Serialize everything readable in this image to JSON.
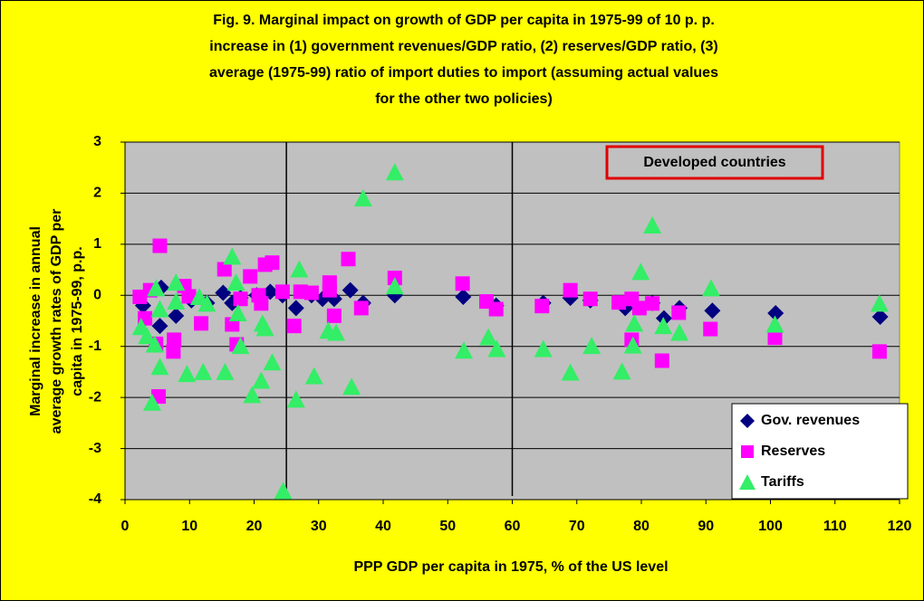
{
  "chart_data": {
    "type": "scatter",
    "title": [
      "Fig. 9. Marginal impact on growth of GDP per capita in 1975-99 of  10 p. p.",
      "increase in (1) government revenues/GDP ratio, (2) reserves/GDP ratio, (3)",
      "average (1975-99) ratio of import duties to import (assuming actual values",
      "for the other two policies)"
    ],
    "y_label": [
      "Marginal increase in annual",
      "average growth rates of GDP per",
      "capita in 1975-99, p.p."
    ],
    "x_label": "PPP GDP per capita in 1975, % of the US level",
    "annotation": "Developed countries",
    "xlim": [
      0,
      120
    ],
    "ylim": [
      -4,
      3
    ],
    "xticks": [
      0,
      10,
      20,
      30,
      40,
      50,
      60,
      70,
      80,
      90,
      100,
      110,
      120
    ],
    "yticks": [
      -4,
      -3,
      -2,
      -1,
      0,
      1,
      2,
      3
    ],
    "vlines": [
      25,
      60
    ],
    "grid": true,
    "legend": "lower right",
    "series": [
      {
        "name": "Gov. revenues",
        "color": "#000080",
        "marker": "diamond",
        "x": [
          2.8,
          5.4,
          5.6,
          7.9,
          10.3,
          12.7,
          15.2,
          16.6,
          17.9,
          20.4,
          22.5,
          24.4,
          26.5,
          28.9,
          30.6,
          32.4,
          34.9,
          36.9,
          41.8,
          52.4,
          57.5,
          64.8,
          69.0,
          72.1,
          77.5,
          81.7,
          83.5,
          85.9,
          91.0,
          100.8,
          117.0
        ],
        "values": [
          -0.2,
          -0.6,
          0.15,
          -0.4,
          -0.1,
          -0.15,
          0.05,
          -0.15,
          -0.05,
          0,
          0.07,
          0,
          -0.25,
          0,
          -0.07,
          -0.07,
          0.1,
          -0.15,
          0,
          -0.03,
          -0.2,
          -0.15,
          -0.05,
          -0.1,
          -0.25,
          -0.15,
          -0.45,
          -0.25,
          -0.3,
          -0.35,
          -0.42
        ]
      },
      {
        "name": "Reserves",
        "color": "#ff00ff",
        "marker": "square",
        "x": [
          2.3,
          3.1,
          3.9,
          4.8,
          5.4,
          5.2,
          7.6,
          7.5,
          9.2,
          9.9,
          11.8,
          15.4,
          16.6,
          17.3,
          17.9,
          19.4,
          20.7,
          21.1,
          21.7,
          22.8,
          24.4,
          26.2,
          27.2,
          28.9,
          31.7,
          31.7,
          32.4,
          34.6,
          36.6,
          41.8,
          52.3,
          56.0,
          57.5,
          64.6,
          69.0,
          72.1,
          76.5,
          78.5,
          78.5,
          79.7,
          81.7,
          83.2,
          85.8,
          90.7,
          100.7,
          116.9
        ],
        "values": [
          -0.03,
          -0.45,
          0.1,
          -0.95,
          0.97,
          -1.98,
          -0.87,
          -1.1,
          0.18,
          -0.02,
          -0.55,
          0.51,
          -0.57,
          -0.96,
          -0.07,
          0.37,
          0,
          -0.16,
          0.6,
          0.64,
          0.07,
          -0.6,
          0.07,
          0.05,
          0.1,
          0.25,
          -0.4,
          0.71,
          -0.25,
          0.34,
          0.23,
          -0.12,
          -0.27,
          -0.21,
          0.1,
          -0.07,
          -0.14,
          -0.07,
          -0.87,
          -0.25,
          -0.16,
          -1.28,
          -0.34,
          -0.66,
          -0.83,
          -1.1
        ]
      },
      {
        "name": "Tariffs",
        "color": "#33ee66",
        "marker": "triangle",
        "x": [
          2.5,
          3.4,
          4.2,
          4.6,
          4.8,
          5.4,
          5.4,
          7.9,
          7.9,
          9.6,
          11.5,
          12.1,
          12.7,
          15.5,
          16.6,
          17.2,
          17.5,
          17.9,
          19.7,
          21.1,
          21.3,
          21.7,
          22.8,
          24.5,
          26.5,
          27.0,
          29.3,
          31.5,
          32.7,
          35.1,
          36.9,
          41.8,
          41.8,
          52.5,
          56.3,
          57.6,
          64.8,
          69.0,
          72.3,
          77.0,
          78.7,
          78.9,
          79.9,
          81.7,
          83.4,
          85.9,
          90.8,
          100.7,
          116.9
        ],
        "values": [
          -0.62,
          -0.8,
          -2.1,
          -0.96,
          0.14,
          -0.27,
          -1.4,
          0.25,
          -0.12,
          -1.54,
          -0.03,
          -1.5,
          -0.16,
          -1.5,
          0.76,
          0.25,
          -0.35,
          -0.99,
          -1.95,
          -1.67,
          -0.55,
          -0.64,
          -1.31,
          -3.83,
          -2.04,
          0.51,
          -1.58,
          -0.69,
          -0.73,
          -1.79,
          1.9,
          2.41,
          0.18,
          -1.08,
          -0.82,
          -1.05,
          -1.05,
          -1.51,
          -0.99,
          -1.49,
          -0.98,
          -0.55,
          0.46,
          1.37,
          -0.6,
          -0.73,
          0.14,
          -0.57,
          -0.16
        ]
      }
    ]
  }
}
